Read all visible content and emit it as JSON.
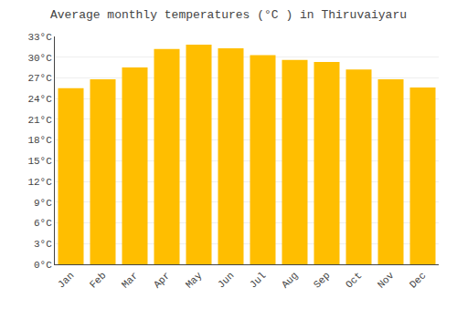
{
  "chart_data": {
    "type": "bar",
    "title": "Average monthly temperatures (°C ) in Thiruvaiyaru",
    "categories": [
      "Jan",
      "Feb",
      "Mar",
      "Apr",
      "May",
      "Jun",
      "Jul",
      "Aug",
      "Sep",
      "Oct",
      "Nov",
      "Dec"
    ],
    "values": [
      25.5,
      26.8,
      28.5,
      31.2,
      31.8,
      31.3,
      30.3,
      29.6,
      29.3,
      28.2,
      26.8,
      25.6
    ],
    "color": "#FFBE00",
    "ylim": [
      0,
      33
    ],
    "yticks": [
      {
        "value": 0,
        "label": "0°C"
      },
      {
        "value": 3,
        "label": "3°C"
      },
      {
        "value": 6,
        "label": "6°C"
      },
      {
        "value": 9,
        "label": "9°C"
      },
      {
        "value": 12,
        "label": "12°C"
      },
      {
        "value": 15,
        "label": "15°C"
      },
      {
        "value": 18,
        "label": "18°C"
      },
      {
        "value": 21,
        "label": "21°C"
      },
      {
        "value": 24,
        "label": "24°C"
      },
      {
        "value": 27,
        "label": "27°C"
      },
      {
        "value": 30,
        "label": "30°C"
      },
      {
        "value": 33,
        "label": "33°C"
      }
    ],
    "grid": true
  }
}
